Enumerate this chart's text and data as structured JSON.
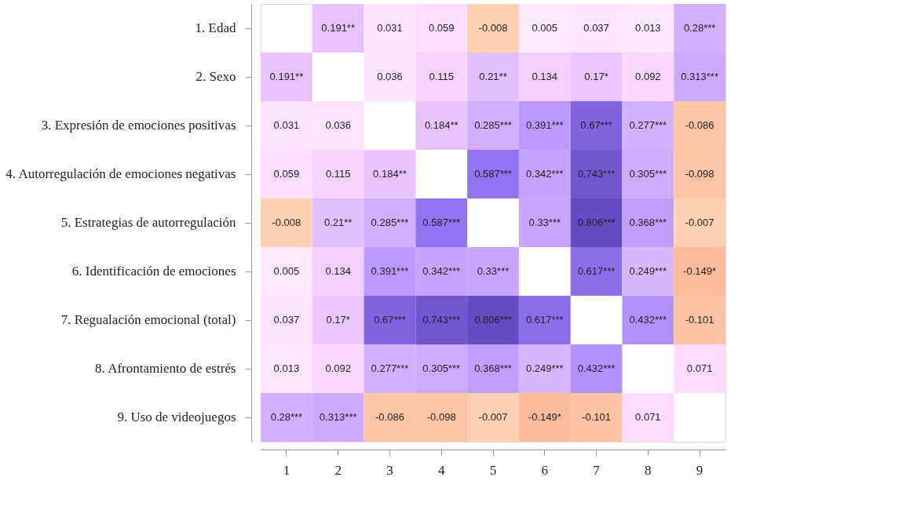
{
  "chart_data": {
    "type": "heatmap",
    "categories": [
      "1",
      "2",
      "3",
      "4",
      "5",
      "6",
      "7",
      "8",
      "9"
    ],
    "y_categories": [
      "1. Edad",
      "2. Sexo",
      "3. Expresión de emociones positivas",
      "4. Autorregulación de emociones negativas",
      "5. Estrategias de autorregulación",
      "6. Identificación de emociones",
      "7. Regualación emocional (total)",
      "8. Afrontamiento de estrés",
      "9. Uso de videojuegos"
    ],
    "cells": [
      [
        null,
        0.191,
        0.031,
        0.059,
        -0.008,
        0.005,
        0.037,
        0.013,
        0.28
      ],
      [
        0.191,
        null,
        0.036,
        0.115,
        0.21,
        0.134,
        0.17,
        0.092,
        0.313
      ],
      [
        0.031,
        0.036,
        null,
        0.184,
        0.285,
        0.391,
        0.67,
        0.277,
        -0.086
      ],
      [
        0.059,
        0.115,
        0.184,
        null,
        0.587,
        0.342,
        0.743,
        0.305,
        -0.098
      ],
      [
        -0.008,
        0.21,
        0.285,
        0.587,
        null,
        0.33,
        0.806,
        0.368,
        -0.007
      ],
      [
        0.005,
        0.134,
        0.391,
        0.342,
        0.33,
        null,
        0.617,
        0.249,
        -0.149
      ],
      [
        0.037,
        0.17,
        0.67,
        0.743,
        0.806,
        0.617,
        null,
        0.432,
        -0.101
      ],
      [
        0.013,
        0.092,
        0.277,
        0.305,
        0.368,
        0.249,
        0.432,
        null,
        0.071
      ],
      [
        0.28,
        0.313,
        -0.086,
        -0.098,
        -0.007,
        -0.149,
        -0.101,
        0.071,
        null
      ]
    ],
    "cell_labels": [
      [
        null,
        "0.191**",
        "0.031",
        "0.059",
        "-0.008",
        "0.005",
        "0.037",
        "0.013",
        "0.28***"
      ],
      [
        "0.191**",
        null,
        "0.036",
        "0.115",
        "0.21**",
        "0.134",
        "0.17*",
        "0.092",
        "0.313***"
      ],
      [
        "0.031",
        "0.036",
        null,
        "0.184**",
        "0.285***",
        "0.391***",
        "0.67***",
        "0.277***",
        "-0.086"
      ],
      [
        "0.059",
        "0.115",
        "0.184**",
        null,
        "0.587***",
        "0.342***",
        "0.743***",
        "0.305***",
        "-0.098"
      ],
      [
        "-0.008",
        "0.21**",
        "0.285***",
        "0.587***",
        null,
        "0.33***",
        "0.806***",
        "0.368***",
        "-0.007"
      ],
      [
        "0.005",
        "0.134",
        "0.391***",
        "0.342***",
        "0.33***",
        null,
        "0.617***",
        "0.249***",
        "-0.149*"
      ],
      [
        "0.037",
        "0.17*",
        "0.67***",
        "0.743***",
        "0.806***",
        "0.617***",
        null,
        "0.432***",
        "-0.101"
      ],
      [
        "0.013",
        "0.092",
        "0.277***",
        "0.305***",
        "0.368***",
        "0.249***",
        "0.432***",
        null,
        "0.071"
      ],
      [
        "0.28***",
        "0.313***",
        "-0.086",
        "-0.098",
        "-0.007",
        "-0.149*",
        "-0.101",
        "0.071",
        null
      ]
    ],
    "grid": false,
    "legend": false
  }
}
